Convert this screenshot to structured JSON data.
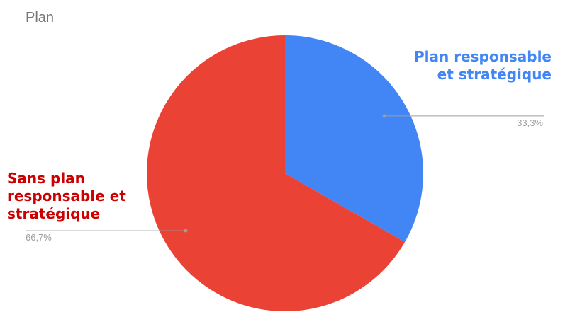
{
  "chart_data": {
    "type": "pie",
    "title": "Plan",
    "slices": [
      {
        "label_lines": [
          "Plan responsable",
          "et stratégique"
        ],
        "value": 33.3,
        "percent_label": "33,3%",
        "color": "#4285f4",
        "label_color": "#4285f4"
      },
      {
        "label_lines": [
          "Sans plan",
          "responsable et",
          "stratégique"
        ],
        "value": 66.7,
        "percent_label": "66,7%",
        "color": "#ea4335",
        "label_color": "#cc0000"
      }
    ],
    "start_angle": "12 o'clock",
    "direction": "clockwise",
    "legend": "none"
  }
}
